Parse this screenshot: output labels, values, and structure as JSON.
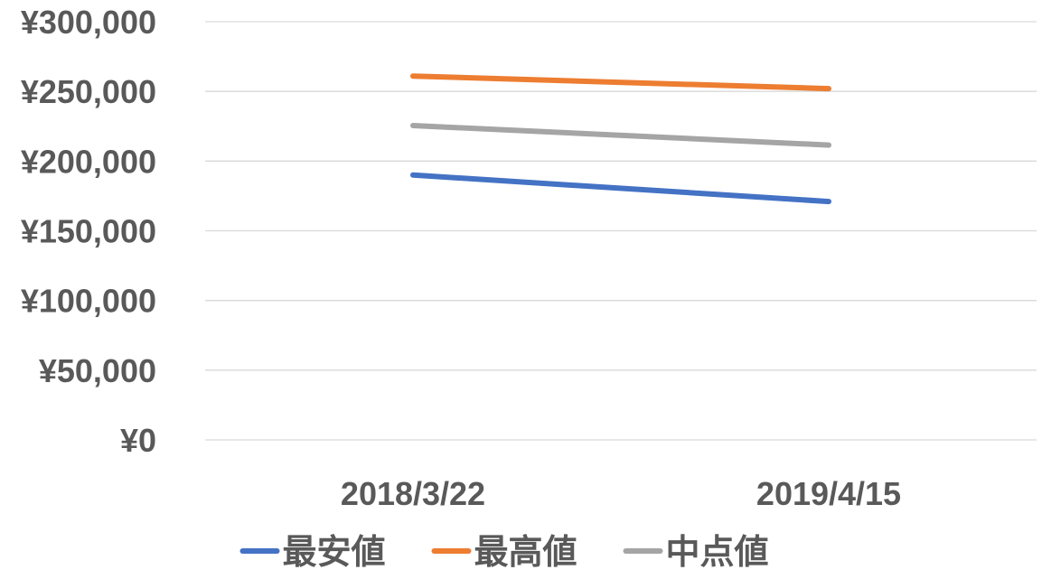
{
  "chart_data": {
    "type": "line",
    "categories": [
      "2018/3/22",
      "2019/4/15"
    ],
    "series": [
      {
        "name": "最安値",
        "color": "#4472c4",
        "values": [
          190000,
          171000
        ]
      },
      {
        "name": "最高値",
        "color": "#ed7d31",
        "values": [
          261000,
          252000
        ]
      },
      {
        "name": "中点値",
        "color": "#a5a5a5",
        "values": [
          225500,
          211500
        ]
      }
    ],
    "y_ticks": [
      {
        "value": 0,
        "label": "¥0"
      },
      {
        "value": 50000,
        "label": "¥50,000"
      },
      {
        "value": 100000,
        "label": "¥100,000"
      },
      {
        "value": 150000,
        "label": "¥150,000"
      },
      {
        "value": 200000,
        "label": "¥200,000"
      },
      {
        "value": 250000,
        "label": "¥250,000"
      },
      {
        "value": 300000,
        "label": "¥300,000"
      }
    ],
    "ylim": [
      0,
      300000
    ],
    "grid": true,
    "legend_position": "bottom"
  }
}
